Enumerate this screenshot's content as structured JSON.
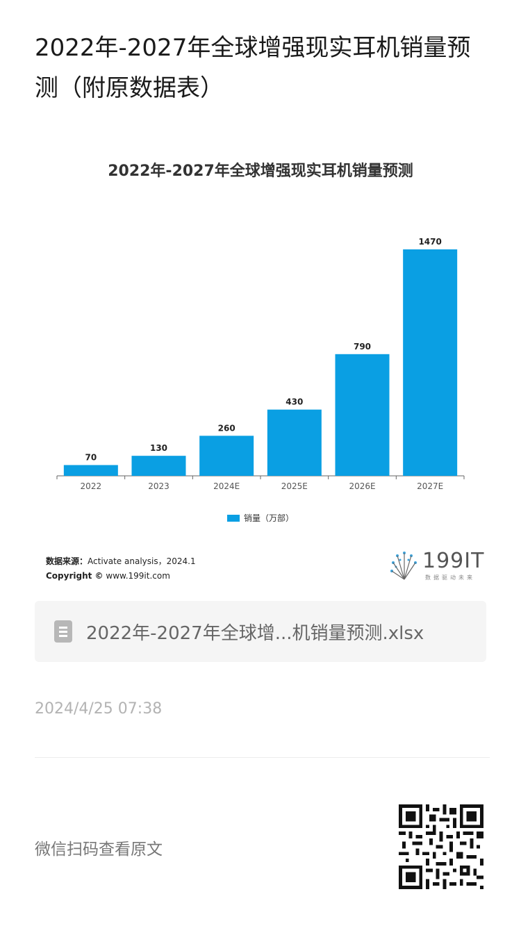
{
  "page": {
    "title": "2022年-2027年全球增强现实耳机销量预测（附原数据表）"
  },
  "chart_data": {
    "type": "bar",
    "title": "2022年-2027年全球增强现实耳机销量预测",
    "categories": [
      "2022",
      "2023",
      "2024E",
      "2025E",
      "2026E",
      "2027E"
    ],
    "series": [
      {
        "name": "销量（万部）",
        "values": [
          70,
          130,
          260,
          430,
          790,
          1470
        ]
      }
    ],
    "ylim": [
      0,
      1470
    ],
    "bar_color": "#0a9fe3",
    "grid": false,
    "legend_position": "bottom"
  },
  "source": {
    "label": "数据来源：",
    "text": "Activate analysis，2024.1",
    "copyright_label": "Copyright ©",
    "copyright_site": "www.199it.com"
  },
  "logo": {
    "name": "199IT",
    "tagline": "数据驱动未来"
  },
  "attachment": {
    "file_name": "2022年-2027年全球增...机销量预测.xlsx",
    "icon": "spreadsheet-icon"
  },
  "meta": {
    "timestamp": "2024/4/25 07:38"
  },
  "footer": {
    "read_original": "微信扫码查看原文",
    "qr_icon": "qr-code-icon"
  }
}
